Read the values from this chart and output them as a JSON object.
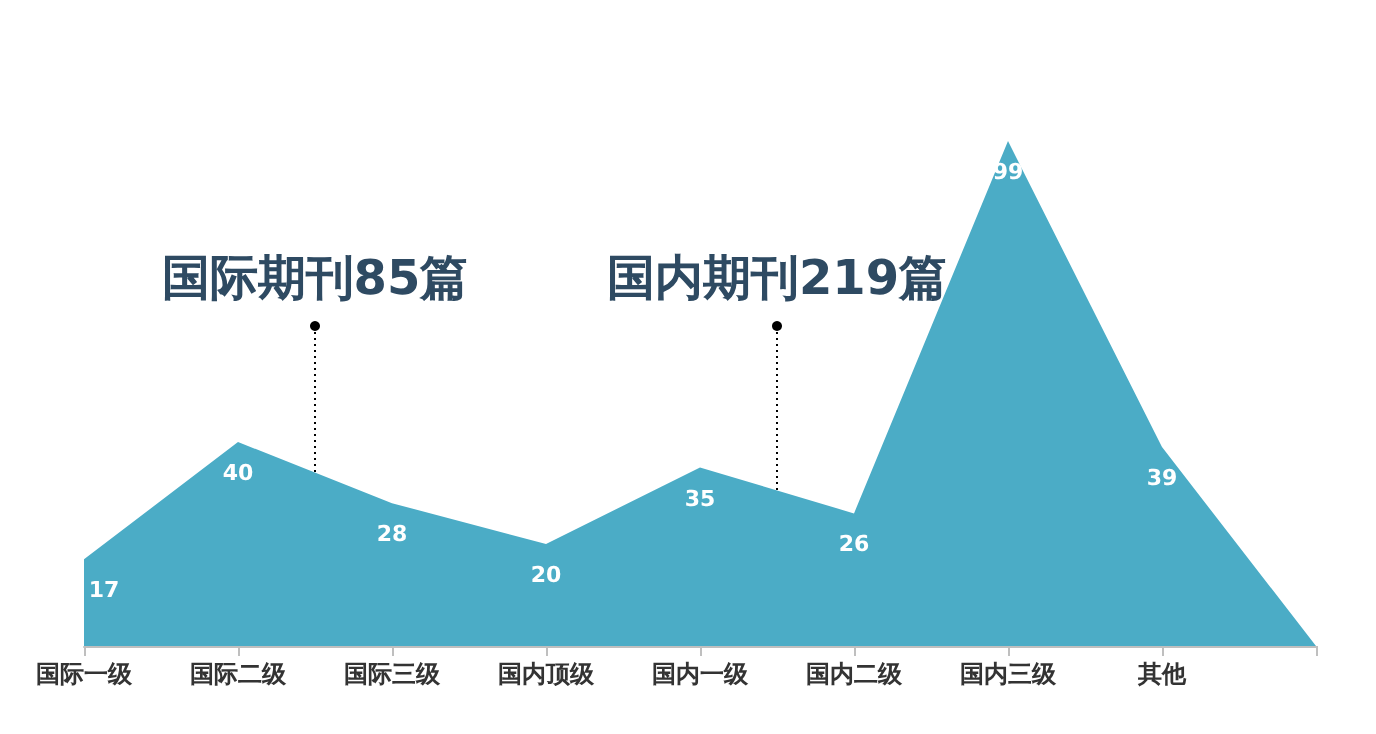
{
  "chart_data": {
    "type": "area",
    "categories": [
      "国际一级",
      "国际二级",
      "国际三级",
      "国内顶级",
      "国内一级",
      "国内二级",
      "国内三级",
      "其他",
      null
    ],
    "values": [
      17,
      40,
      28,
      20,
      35,
      26,
      99,
      39,
      0
    ],
    "value_labels": [
      "17",
      "40",
      "28",
      "20",
      "35",
      "26",
      "99",
      "39",
      null
    ],
    "color": "#4bacc6",
    "grid": false,
    "annotations": [
      "国际期刊85篇",
      "国内期刊219篇"
    ]
  }
}
